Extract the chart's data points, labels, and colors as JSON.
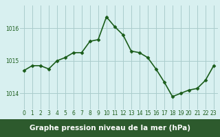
{
  "x": [
    0,
    1,
    2,
    3,
    4,
    5,
    6,
    7,
    8,
    9,
    10,
    11,
    12,
    13,
    14,
    15,
    16,
    17,
    18,
    19,
    20,
    21,
    22,
    23
  ],
  "y": [
    1014.7,
    1014.85,
    1014.85,
    1014.75,
    1015.0,
    1015.1,
    1015.25,
    1015.25,
    1015.6,
    1015.65,
    1016.35,
    1016.05,
    1015.8,
    1015.3,
    1015.25,
    1015.1,
    1014.75,
    1014.35,
    1013.9,
    1014.0,
    1014.1,
    1014.15,
    1014.4,
    1014.85
  ],
  "line_color": "#1a5c1a",
  "marker": "D",
  "marker_size": 2.5,
  "line_width": 1.2,
  "bg_color": "#d8f0f0",
  "grid_color": "#aacccc",
  "tick_label_color": "#1a5c1a",
  "tick_fontsize": 5.5,
  "yticks": [
    1014,
    1015,
    1016
  ],
  "ylim": [
    1013.5,
    1016.7
  ],
  "xlim": [
    -0.5,
    23.5
  ],
  "bottom_bar_color": "#2d5a2d",
  "xlabel": "Graphe pression niveau de la mer (hPa)",
  "xlabel_fontsize": 7.5
}
